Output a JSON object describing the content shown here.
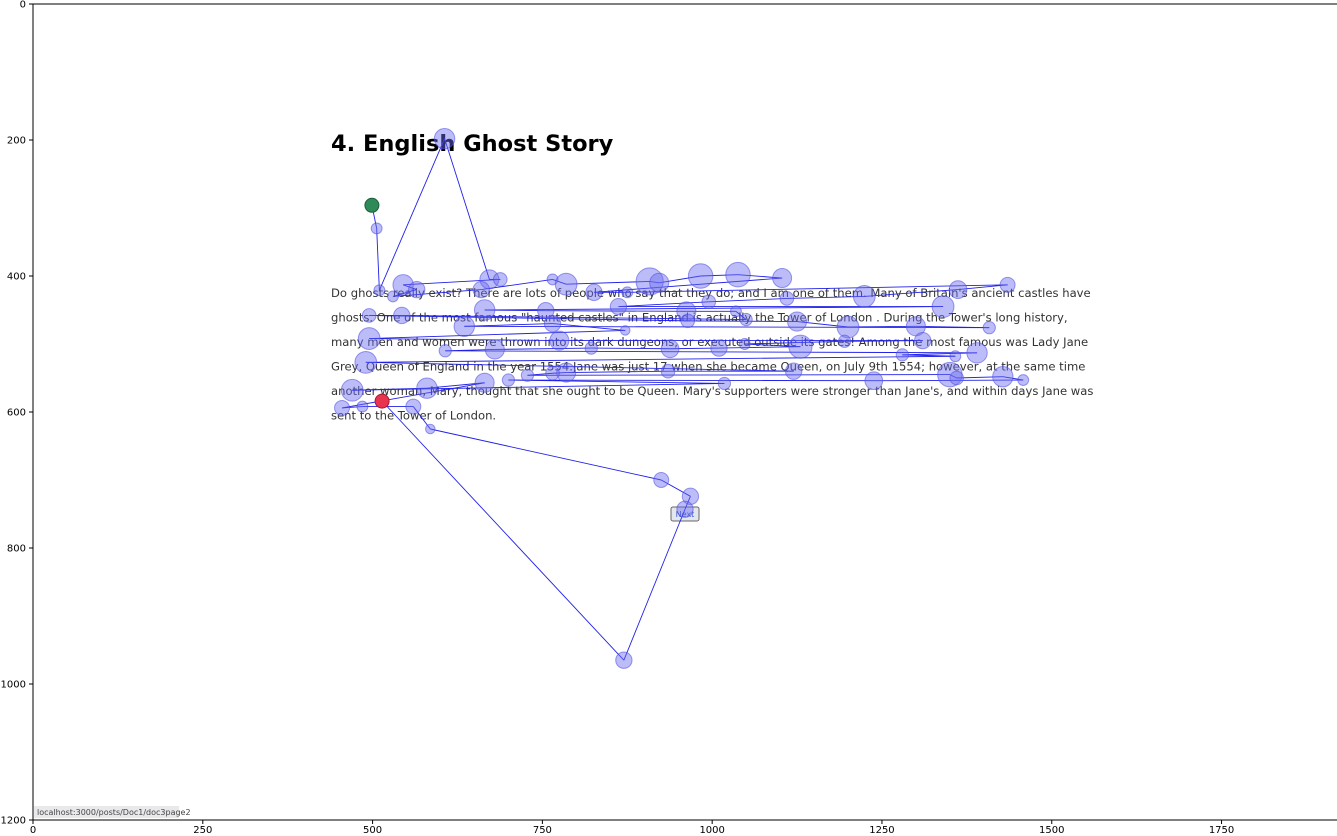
{
  "page": {
    "title": "4. English Ghost Story",
    "paragraph_lines": [
      "Do ghosts really exist? There are lots of people who say that they do; and I am one of them. Many of Britain's ancient castles have",
      "ghosts. One of the most famous \"haunted castles\" in England is actually the Tower of London . During the Tower's long history,",
      "many men and women were thrown into its dark dungeons, or executed outside its gates! Among the most famous was Lady Jane",
      "Grey, Queen of England in the year 1554.Jane was just 17 when she became Queen, on July 9th 1554; however, at the same time",
      "another woman, Mary, thought that she ought to be Queen. Mary's supporters were stronger than Jane's, and within days Jane was",
      "sent to the Tower of London."
    ],
    "next_button": "Next",
    "status_url": "localhost:3000/posts/Doc1/doc3page2"
  },
  "colors": {
    "fixation_fill": "#6b6bf0",
    "scanpath_line": "#2020e8",
    "start_marker": "#2e8b57",
    "end_marker": "#e8344e"
  },
  "chart_data": {
    "type": "scatter",
    "title": "",
    "xlabel": "",
    "ylabel": "",
    "xlim": [
      0,
      1920
    ],
    "ylim": [
      1200,
      0
    ],
    "x_ticks": [
      0,
      250,
      500,
      750,
      1000,
      1250,
      1500,
      1750
    ],
    "y_ticks": [
      0,
      200,
      400,
      600,
      800,
      1000,
      1200
    ],
    "grid": false,
    "fixations": [
      {
        "x": 499,
        "y": 296,
        "s": 9
      },
      {
        "x": 506,
        "y": 330,
        "s": 8
      },
      {
        "x": 510,
        "y": 421,
        "s": 8
      },
      {
        "x": 606,
        "y": 198,
        "s": 15
      },
      {
        "x": 672,
        "y": 405,
        "s": 14
      },
      {
        "x": 688,
        "y": 405,
        "s": 10
      },
      {
        "x": 545,
        "y": 413,
        "s": 15
      },
      {
        "x": 565,
        "y": 420,
        "s": 12
      },
      {
        "x": 530,
        "y": 430,
        "s": 8
      },
      {
        "x": 660,
        "y": 420,
        "s": 12
      },
      {
        "x": 765,
        "y": 405,
        "s": 8
      },
      {
        "x": 785,
        "y": 412,
        "s": 16
      },
      {
        "x": 908,
        "y": 408,
        "s": 20
      },
      {
        "x": 922,
        "y": 410,
        "s": 14
      },
      {
        "x": 983,
        "y": 400,
        "s": 18
      },
      {
        "x": 1038,
        "y": 398,
        "s": 18
      },
      {
        "x": 1103,
        "y": 403,
        "s": 14
      },
      {
        "x": 826,
        "y": 424,
        "s": 12
      },
      {
        "x": 875,
        "y": 424,
        "s": 8
      },
      {
        "x": 1435,
        "y": 413,
        "s": 11
      },
      {
        "x": 1362,
        "y": 420,
        "s": 13
      },
      {
        "x": 1224,
        "y": 430,
        "s": 16
      },
      {
        "x": 1110,
        "y": 433,
        "s": 10
      },
      {
        "x": 995,
        "y": 438,
        "s": 10
      },
      {
        "x": 862,
        "y": 445,
        "s": 12
      },
      {
        "x": 1340,
        "y": 445,
        "s": 16
      },
      {
        "x": 665,
        "y": 450,
        "s": 15
      },
      {
        "x": 755,
        "y": 451,
        "s": 12
      },
      {
        "x": 962,
        "y": 452,
        "s": 14
      },
      {
        "x": 1035,
        "y": 452,
        "s": 8
      },
      {
        "x": 1050,
        "y": 464,
        "s": 9
      },
      {
        "x": 543,
        "y": 458,
        "s": 12
      },
      {
        "x": 495,
        "y": 458,
        "s": 10
      },
      {
        "x": 964,
        "y": 466,
        "s": 10
      },
      {
        "x": 1125,
        "y": 467,
        "s": 14
      },
      {
        "x": 1200,
        "y": 475,
        "s": 16
      },
      {
        "x": 1300,
        "y": 474,
        "s": 14
      },
      {
        "x": 1408,
        "y": 476,
        "s": 9
      },
      {
        "x": 635,
        "y": 474,
        "s": 15
      },
      {
        "x": 765,
        "y": 470,
        "s": 12
      },
      {
        "x": 872,
        "y": 480,
        "s": 7
      },
      {
        "x": 495,
        "y": 492,
        "s": 16
      },
      {
        "x": 775,
        "y": 495,
        "s": 14
      },
      {
        "x": 1310,
        "y": 495,
        "s": 12
      },
      {
        "x": 1195,
        "y": 496,
        "s": 9
      },
      {
        "x": 1048,
        "y": 500,
        "s": 8
      },
      {
        "x": 1130,
        "y": 504,
        "s": 17
      },
      {
        "x": 1010,
        "y": 506,
        "s": 12
      },
      {
        "x": 938,
        "y": 507,
        "s": 13
      },
      {
        "x": 822,
        "y": 506,
        "s": 9
      },
      {
        "x": 680,
        "y": 508,
        "s": 14
      },
      {
        "x": 607,
        "y": 510,
        "s": 9
      },
      {
        "x": 1390,
        "y": 513,
        "s": 15
      },
      {
        "x": 1280,
        "y": 516,
        "s": 9
      },
      {
        "x": 1358,
        "y": 518,
        "s": 8
      },
      {
        "x": 490,
        "y": 527,
        "s": 16
      },
      {
        "x": 1120,
        "y": 540,
        "s": 12
      },
      {
        "x": 935,
        "y": 540,
        "s": 10
      },
      {
        "x": 785,
        "y": 542,
        "s": 14
      },
      {
        "x": 765,
        "y": 543,
        "s": 10
      },
      {
        "x": 728,
        "y": 546,
        "s": 9
      },
      {
        "x": 1350,
        "y": 545,
        "s": 18
      },
      {
        "x": 1360,
        "y": 550,
        "s": 10
      },
      {
        "x": 1428,
        "y": 548,
        "s": 15
      },
      {
        "x": 1458,
        "y": 553,
        "s": 8
      },
      {
        "x": 1238,
        "y": 554,
        "s": 13
      },
      {
        "x": 700,
        "y": 553,
        "s": 9
      },
      {
        "x": 1018,
        "y": 558,
        "s": 9
      },
      {
        "x": 470,
        "y": 568,
        "s": 16
      },
      {
        "x": 580,
        "y": 565,
        "s": 15
      },
      {
        "x": 665,
        "y": 557,
        "s": 14
      },
      {
        "x": 455,
        "y": 594,
        "s": 11
      },
      {
        "x": 485,
        "y": 592,
        "s": 8
      },
      {
        "x": 560,
        "y": 592,
        "s": 11
      },
      {
        "x": 585,
        "y": 625,
        "s": 7
      },
      {
        "x": 925,
        "y": 700,
        "s": 11
      },
      {
        "x": 968,
        "y": 724,
        "s": 12
      },
      {
        "x": 960,
        "y": 743,
        "s": 12
      },
      {
        "x": 870,
        "y": 965,
        "s": 12
      },
      {
        "x": 514,
        "y": 584,
        "s": 9
      }
    ],
    "scanpath_order": [
      0,
      1,
      2,
      3,
      4,
      5,
      6,
      7,
      8,
      9,
      10,
      11,
      12,
      13,
      14,
      15,
      16,
      17,
      18,
      19,
      20,
      21,
      22,
      23,
      24,
      25,
      26,
      27,
      28,
      29,
      30,
      31,
      32,
      33,
      34,
      35,
      36,
      37,
      38,
      39,
      40,
      41,
      42,
      43,
      44,
      45,
      46,
      47,
      48,
      49,
      50,
      51,
      52,
      53,
      54,
      55,
      56,
      57,
      58,
      59,
      60,
      61,
      62,
      63,
      64,
      65,
      66,
      67,
      68,
      69,
      70,
      71,
      72,
      73,
      74,
      75,
      76,
      77,
      78,
      79
    ],
    "start_index": 0,
    "end_index": 79
  }
}
